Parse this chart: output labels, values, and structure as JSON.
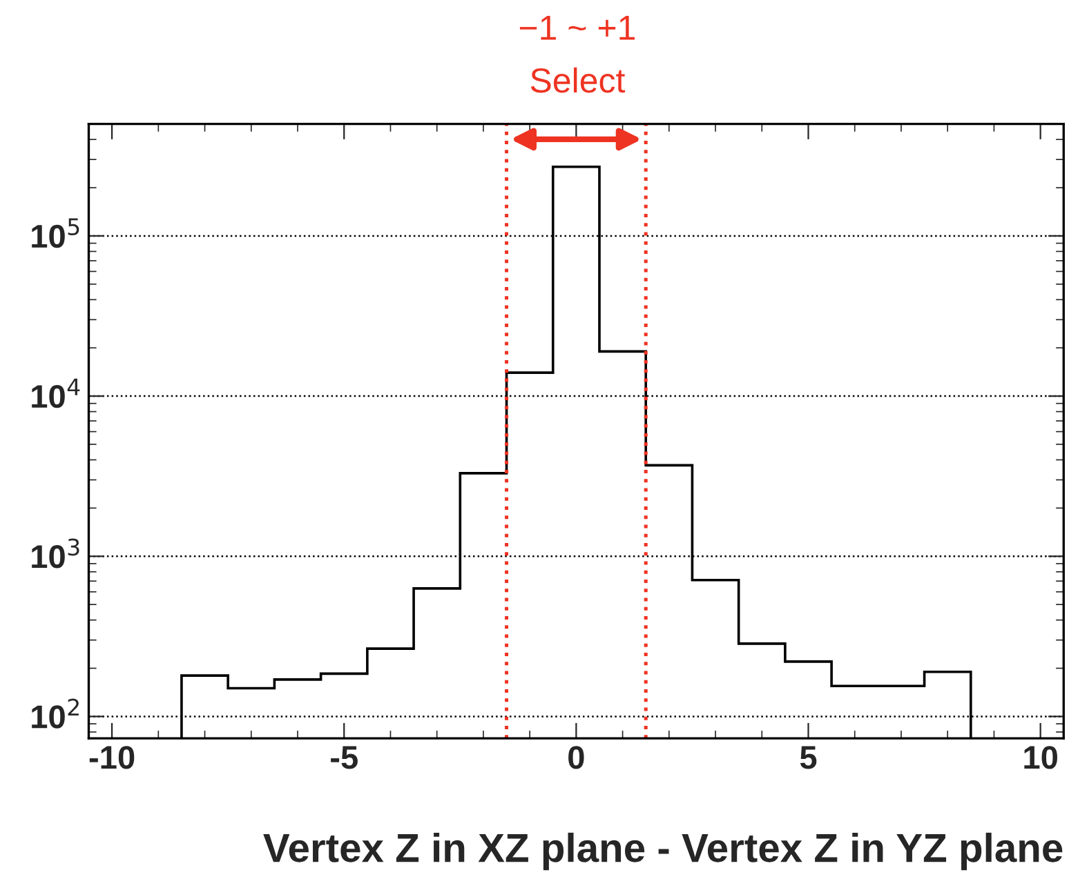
{
  "chart_data": {
    "type": "histogram",
    "xlabel": "Vertex Z in XZ plane - Vertex Z in YZ plane",
    "bins": [
      -8.5,
      -7.5,
      -6.5,
      -5.5,
      -4.5,
      -3.5,
      -2.5,
      -1.5,
      -0.5,
      0.5,
      1.5,
      2.5,
      3.5,
      4.5,
      5.5,
      6.5,
      7.5,
      8.5
    ],
    "values": [
      180,
      150,
      170,
      185,
      265,
      630,
      3300,
      14000,
      270000,
      19000,
      3700,
      710,
      285,
      220,
      155,
      155,
      190
    ],
    "color": "#000000",
    "log": "y",
    "grid": "y",
    "xlim": [
      -10.5,
      10.5
    ],
    "xticks": [
      -10,
      -5,
      0,
      5,
      10
    ],
    "ylim": [
      73,
      500000
    ],
    "yticks": [
      {
        "value": 100,
        "label": "10$^{2}$"
      },
      {
        "value": 1000,
        "label": "10$^{3}$"
      },
      {
        "value": 10000,
        "label": "10$^{4}$"
      },
      {
        "value": 100000,
        "label": "10$^{5}$"
      }
    ],
    "ref_lines": [
      {
        "axis": "x",
        "value": -1.5,
        "color": "#ee3322",
        "line_style": "dotted"
      },
      {
        "axis": "x",
        "value": 1.5,
        "color": "#ee3322",
        "line_style": "dotted"
      }
    ],
    "annotations": [
      "−1 ~ +1",
      "Select"
    ]
  }
}
